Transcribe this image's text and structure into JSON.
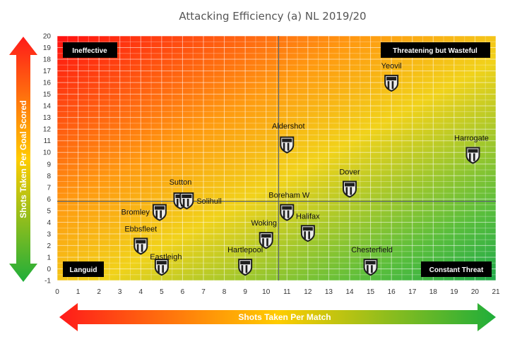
{
  "chart_data": {
    "type": "scatter",
    "title": "Attacking Efficiency (a) NL 2019/20",
    "xlabel": "Shots Taken Per Match",
    "ylabel": "Shots Taken Per Goal Scored",
    "xlim": [
      0,
      21
    ],
    "ylim": [
      -1,
      20
    ],
    "x_ticks": [
      "0",
      "1",
      "2",
      "3",
      "4",
      "5",
      "6",
      "7",
      "8",
      "9",
      "10",
      "11",
      "12",
      "13",
      "14",
      "15",
      "16",
      "17",
      "18",
      "19",
      "20",
      "21"
    ],
    "y_ticks": [
      "-1",
      "0",
      "1",
      "2",
      "3",
      "4",
      "5",
      "6",
      "7",
      "8",
      "9",
      "10",
      "11",
      "12",
      "13",
      "14",
      "15",
      "16",
      "17",
      "18",
      "19",
      "20"
    ],
    "grid": true,
    "reference_lines": {
      "x": 10.6,
      "y": 5.8
    },
    "quadrant_labels": {
      "top_left": "Ineffective",
      "top_right": "Threatening but Wasteful",
      "bottom_left": "Languid",
      "bottom_right": "Constant Threat"
    },
    "points": [
      {
        "label": "Yeovil",
        "x": 16.0,
        "y": 16.0
      },
      {
        "label": "Harrogate",
        "x": 19.9,
        "y": 9.8
      },
      {
        "label": "Aldershot",
        "x": 11.0,
        "y": 10.7
      },
      {
        "label": "Dover",
        "x": 14.0,
        "y": 6.9
      },
      {
        "label": "Sutton",
        "x": 5.9,
        "y": 5.9
      },
      {
        "label": "Solihull",
        "x": 6.2,
        "y": 5.9
      },
      {
        "label": "Boreham W",
        "x": 11.0,
        "y": 4.9
      },
      {
        "label": "Bromley",
        "x": 4.9,
        "y": 4.9
      },
      {
        "label": "Halifax",
        "x": 12.0,
        "y": 3.1
      },
      {
        "label": "Woking",
        "x": 10.0,
        "y": 2.5
      },
      {
        "label": "Ebbsfleet",
        "x": 4.0,
        "y": 2.0
      },
      {
        "label": "Hartlepool",
        "x": 9.0,
        "y": 0.2
      },
      {
        "label": "Chesterfield",
        "x": 15.0,
        "y": 0.2
      },
      {
        "label": "Eastleigh",
        "x": 5.0,
        "y": 0.2
      }
    ]
  },
  "colors": {
    "gradient_red": "#ff1a1a",
    "gradient_orange": "#ff9a10",
    "gradient_yellow": "#ffd700",
    "gradient_green": "#2bb24c",
    "badge_fill": "#1e1e1e",
    "ref_line": "#5a6470"
  }
}
